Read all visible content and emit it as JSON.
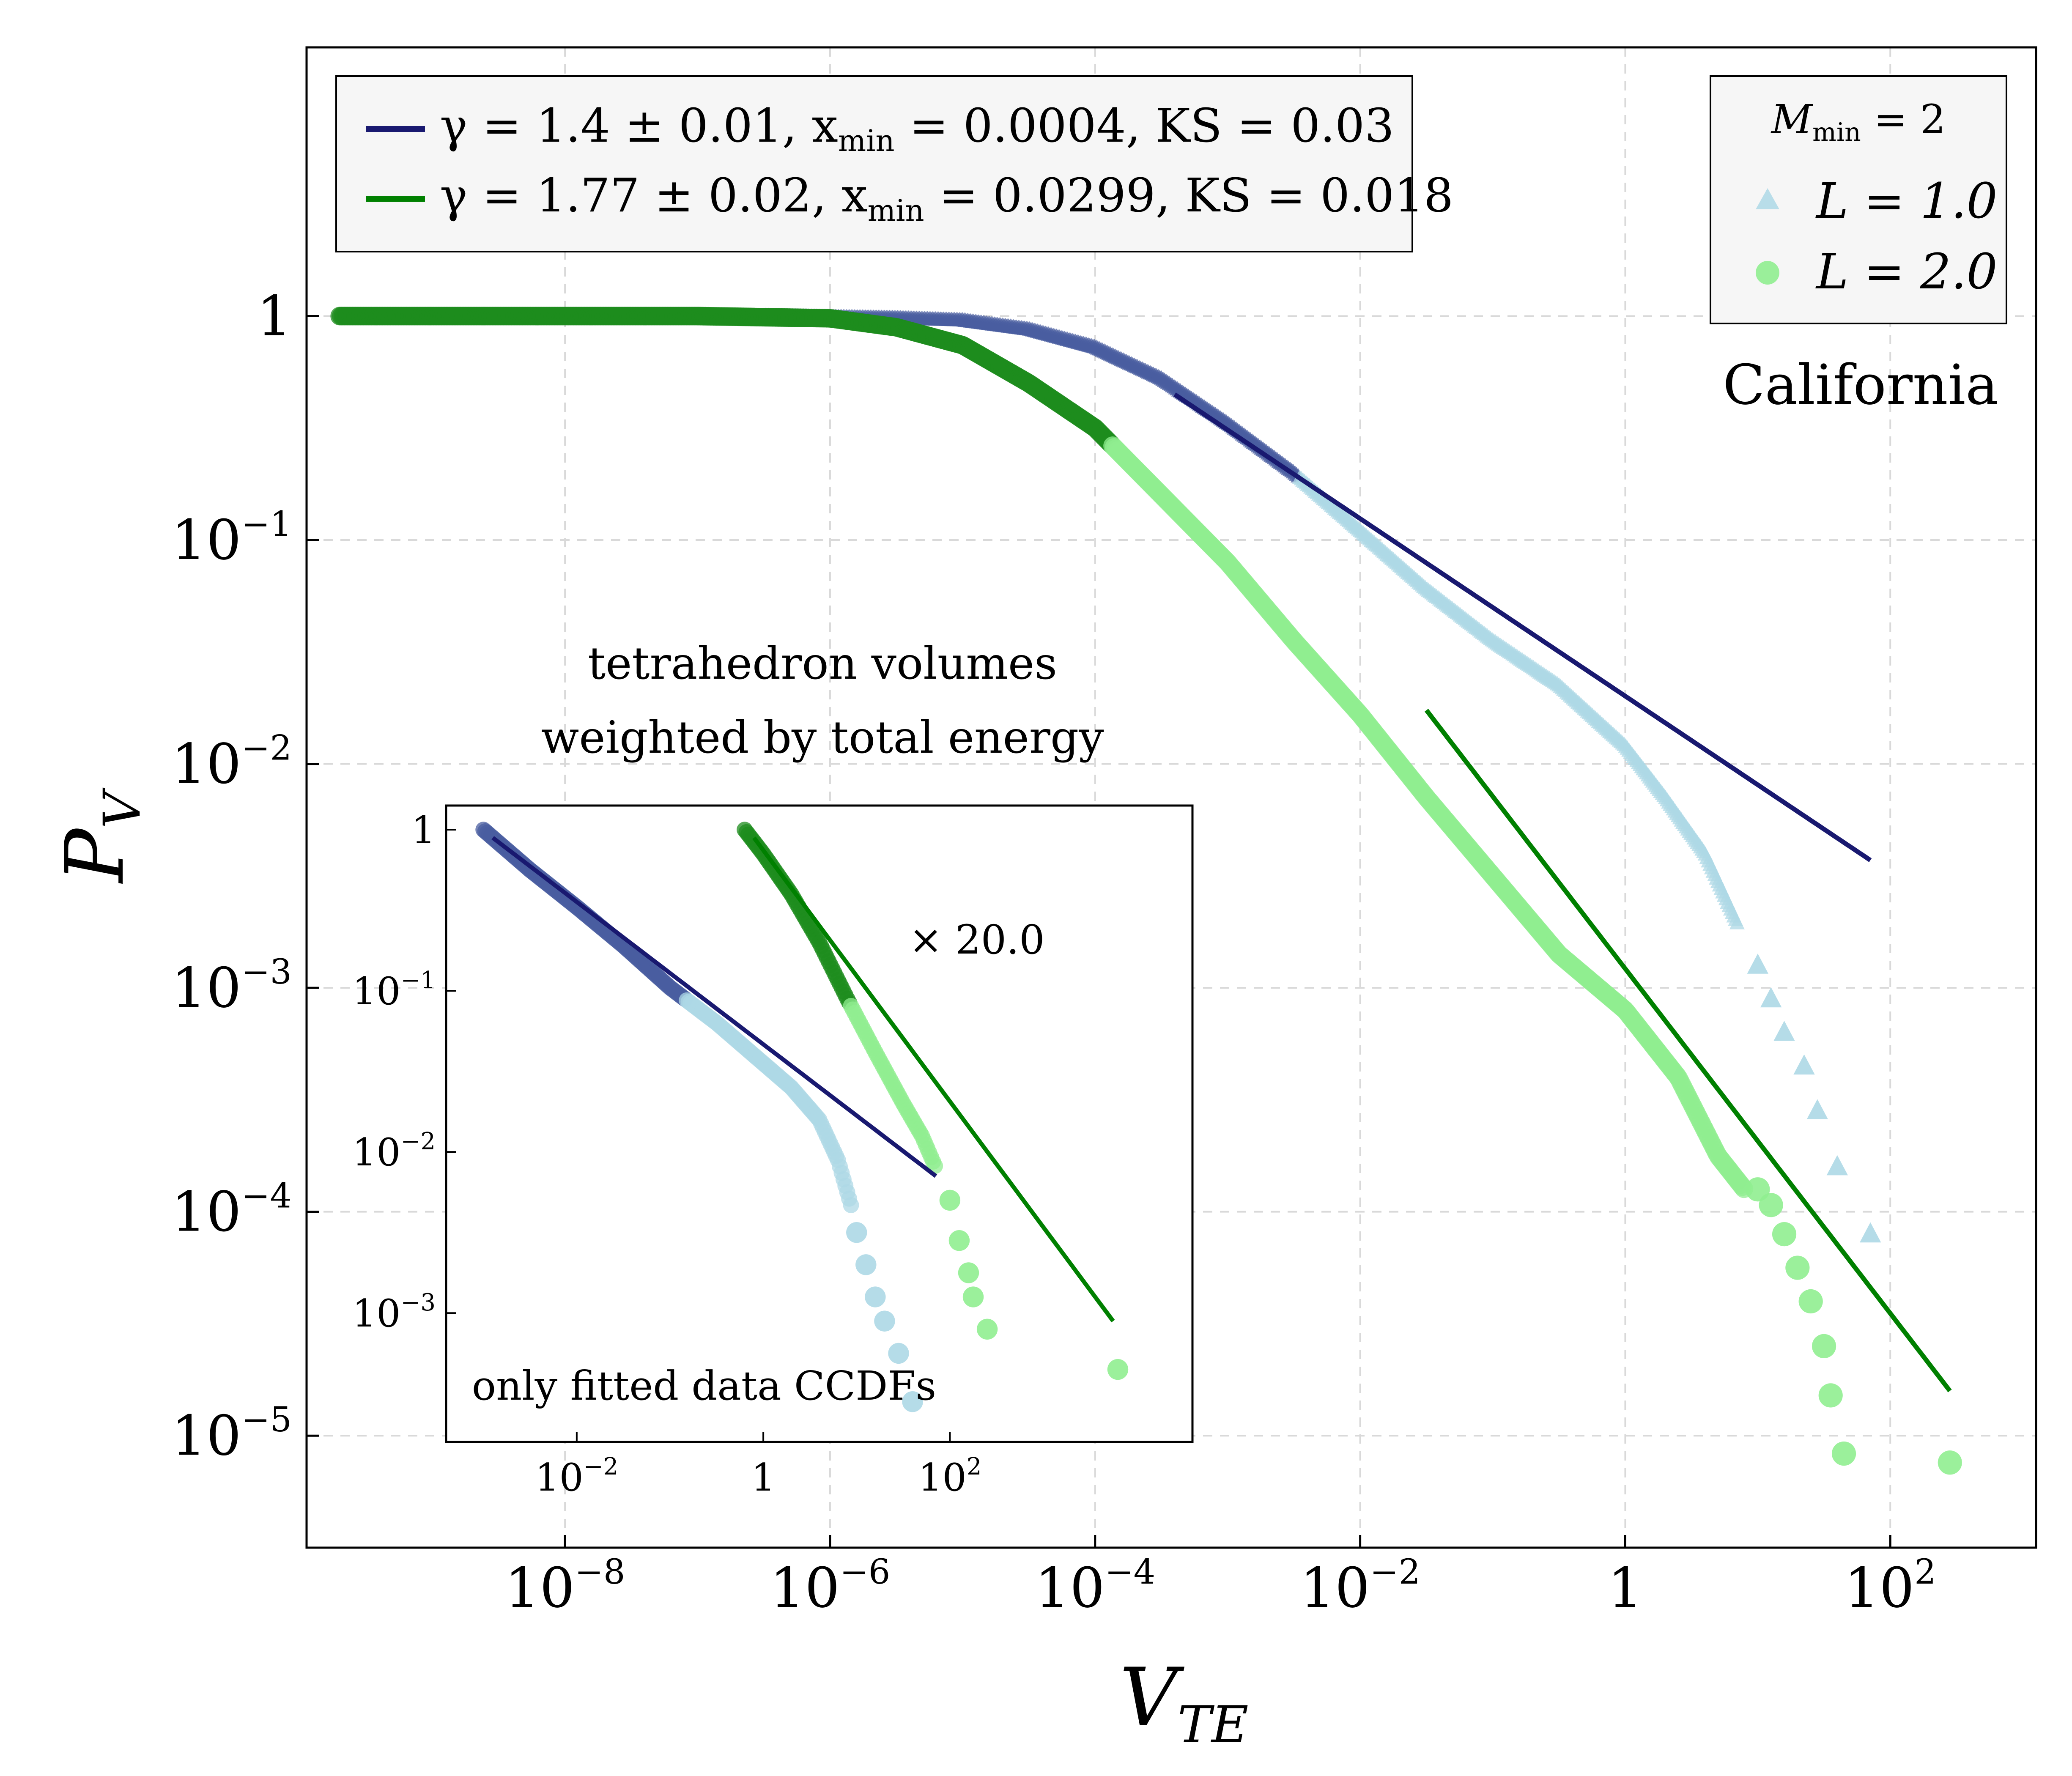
{
  "chart_data": {
    "type": "scatter",
    "title": "",
    "xlabel": "V",
    "xlabel_sub": "TE",
    "ylabel": "P",
    "ylabel_sub": "V",
    "xscale": "log",
    "yscale": "log",
    "xlim_log10": [
      -9.95,
      3.1
    ],
    "ylim_log10": [
      -5.5,
      1.2
    ],
    "grid": true,
    "x_ticks": [
      {
        "log": -8,
        "base": "10",
        "exp": "−8"
      },
      {
        "log": -6,
        "base": "10",
        "exp": "−6"
      },
      {
        "log": -4,
        "base": "10",
        "exp": "−4"
      },
      {
        "log": -2,
        "base": "10",
        "exp": "−2"
      },
      {
        "log": 0,
        "base": "1",
        "exp": ""
      },
      {
        "log": 2,
        "base": "10",
        "exp": "2"
      }
    ],
    "y_ticks": [
      {
        "log": 0,
        "base": "1",
        "exp": ""
      },
      {
        "log": -1,
        "base": "10",
        "exp": "−1"
      },
      {
        "log": -2,
        "base": "10",
        "exp": "−2"
      },
      {
        "log": -3,
        "base": "10",
        "exp": "−3"
      },
      {
        "log": -4,
        "base": "10",
        "exp": "−4"
      },
      {
        "log": -5,
        "base": "10",
        "exp": "−5"
      }
    ],
    "fit_legend": {
      "placement": "top-left",
      "entries": [
        {
          "text": "γ = 1.4 ± 0.01, x",
          "sub": "min",
          "rest": " = 0.0004, KS = 0.03",
          "color": "#191970"
        },
        {
          "text": "γ = 1.77 ± 0.02, x",
          "sub": "min",
          "rest": " = 0.0299, KS = 0.018",
          "color": "#008000"
        }
      ]
    },
    "data_legend": {
      "placement": "top-right",
      "title": "M",
      "title_sub": "min",
      "title_rest": " = 2",
      "entries": [
        {
          "label": "L = 1.0",
          "marker": "triangle",
          "color": "#add8e6"
        },
        {
          "label": "L = 2.0",
          "marker": "circle",
          "color": "#90ee90"
        }
      ]
    },
    "annotations": {
      "region": "California",
      "inset_caption_line1": "tetrahedron volumes",
      "inset_caption_line2": "weighted by total energy"
    },
    "series": [
      {
        "name": "L = 1.0",
        "marker": "triangle",
        "color_dense": "#4a5ea0",
        "color_sparse": "#add8e6",
        "curve_log": [
          [
            -6.5,
            0.0
          ],
          [
            -5.5,
            -0.01
          ],
          [
            -5.0,
            -0.02
          ],
          [
            -4.5,
            -0.06
          ],
          [
            -4.0,
            -0.14
          ],
          [
            -3.5,
            -0.28
          ],
          [
            -3.0,
            -0.48
          ],
          [
            -2.5,
            -0.7
          ],
          [
            -2.0,
            -0.96
          ],
          [
            -1.5,
            -1.22
          ],
          [
            -1.0,
            -1.45
          ],
          [
            -0.5,
            -1.65
          ],
          [
            0.0,
            -1.92
          ],
          [
            0.3,
            -2.15
          ],
          [
            0.6,
            -2.4
          ],
          [
            0.85,
            -2.72
          ]
        ],
        "tail_log": [
          [
            1.0,
            -2.9
          ],
          [
            1.1,
            -3.05
          ],
          [
            1.2,
            -3.2
          ],
          [
            1.35,
            -3.35
          ],
          [
            1.45,
            -3.55
          ],
          [
            1.6,
            -3.8
          ],
          [
            1.85,
            -4.1
          ]
        ]
      },
      {
        "name": "L = 2.0",
        "marker": "circle",
        "color_dense": "#1e8c1e",
        "color_sparse": "#90ee90",
        "curve_log": [
          [
            -9.7,
            0.0
          ],
          [
            -7.0,
            0.0
          ],
          [
            -6.0,
            -0.01
          ],
          [
            -5.5,
            -0.05
          ],
          [
            -5.0,
            -0.13
          ],
          [
            -4.5,
            -0.3
          ],
          [
            -4.0,
            -0.5
          ],
          [
            -3.5,
            -0.8
          ],
          [
            -3.0,
            -1.1
          ],
          [
            -2.5,
            -1.45
          ],
          [
            -2.0,
            -1.78
          ],
          [
            -1.5,
            -2.15
          ],
          [
            -1.0,
            -2.5
          ],
          [
            -0.5,
            -2.85
          ],
          [
            0.0,
            -3.1
          ],
          [
            0.4,
            -3.4
          ],
          [
            0.7,
            -3.75
          ],
          [
            0.9,
            -3.9
          ]
        ],
        "tail_log": [
          [
            1.0,
            -3.9
          ],
          [
            1.1,
            -3.97
          ],
          [
            1.2,
            -4.1
          ],
          [
            1.3,
            -4.25
          ],
          [
            1.4,
            -4.4
          ],
          [
            1.5,
            -4.6
          ],
          [
            1.55,
            -4.82
          ],
          [
            1.65,
            -5.08
          ],
          [
            2.45,
            -5.12
          ]
        ]
      }
    ],
    "fits": [
      {
        "name": "fit L = 1.0",
        "color": "#191970",
        "x_log": [
          -3.4,
          1.85
        ],
        "y_log": [
          -0.35,
          -2.43
        ]
      },
      {
        "name": "fit L = 2.0",
        "color": "#008000",
        "x_log": [
          -1.5,
          2.45
        ],
        "y_log": [
          -1.76,
          -4.8
        ]
      }
    ],
    "inset": {
      "caption": "only fitted data CCDFs",
      "multiplier_text": "× 20.0",
      "xlim_log10": [
        -3.4,
        4.6
      ],
      "ylim_log10": [
        -3.8,
        0.15
      ],
      "x_ticks": [
        {
          "log": -2,
          "base": "10",
          "exp": "−2"
        },
        {
          "log": 0,
          "base": "1",
          "exp": ""
        },
        {
          "log": 2,
          "base": "10",
          "exp": "2"
        }
      ],
      "y_ticks": [
        {
          "log": 0,
          "base": "1",
          "exp": ""
        },
        {
          "log": -1,
          "base": "10",
          "exp": "−1"
        },
        {
          "log": -2,
          "base": "10",
          "exp": "−2"
        },
        {
          "log": -3,
          "base": "10",
          "exp": "−3"
        }
      ],
      "series": [
        {
          "name": "L = 1.0 fitted",
          "color_dense": "#4a5ea0",
          "color_sparse": "#add8e6",
          "curve_log": [
            [
              -3.0,
              0.0
            ],
            [
              -2.5,
              -0.25
            ],
            [
              -2.0,
              -0.48
            ],
            [
              -1.5,
              -0.72
            ],
            [
              -1.0,
              -0.98
            ],
            [
              -0.5,
              -1.2
            ],
            [
              0.0,
              -1.45
            ],
            [
              0.3,
              -1.6
            ],
            [
              0.6,
              -1.8
            ],
            [
              0.8,
              -2.05
            ],
            [
              0.95,
              -2.35
            ]
          ],
          "tail_log": [
            [
              1.0,
              -2.5
            ],
            [
              1.1,
              -2.7
            ],
            [
              1.2,
              -2.9
            ],
            [
              1.3,
              -3.05
            ],
            [
              1.45,
              -3.25
            ],
            [
              1.6,
              -3.55
            ]
          ]
        },
        {
          "name": "L = 2.0 fitted",
          "color_dense": "#1e8c1e",
          "color_sparse": "#90ee90",
          "curve_log": [
            [
              -0.2,
              0.0
            ],
            [
              0.0,
              -0.15
            ],
            [
              0.3,
              -0.4
            ],
            [
              0.6,
              -0.7
            ],
            [
              0.9,
              -1.05
            ],
            [
              1.2,
              -1.38
            ],
            [
              1.5,
              -1.7
            ],
            [
              1.7,
              -1.9
            ],
            [
              1.85,
              -2.1
            ]
          ],
          "tail_log": [
            [
              2.0,
              -2.3
            ],
            [
              2.1,
              -2.55
            ],
            [
              2.2,
              -2.75
            ],
            [
              2.25,
              -2.9
            ],
            [
              2.4,
              -3.1
            ],
            [
              3.8,
              -3.35
            ]
          ]
        }
      ],
      "fits": [
        {
          "name": "inset fit L = 1.0",
          "color": "#191970",
          "x_log": [
            -2.9,
            1.85
          ],
          "y_log": [
            -0.05,
            -2.15
          ]
        },
        {
          "name": "inset fit L = 2.0",
          "color": "#008000",
          "x_log": [
            -0.1,
            3.75
          ],
          "y_log": [
            -0.05,
            -3.05
          ]
        }
      ]
    }
  }
}
